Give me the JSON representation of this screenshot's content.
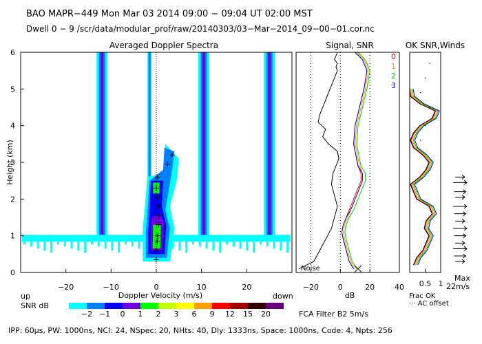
{
  "header": {
    "line1": "BAO  MAPR−449  Mon Mar 03 2014 09:00 − 09:04 UT 02:00 MST",
    "line2": "Dwell  0 −  9   /scr/data/modular_prof/raw/20140303/03−Mar−2014_09−00−01.cor.nc"
  },
  "footer": {
    "params": "IPP:  60μs,  PW: 1000ns,  NCI:  24,  NSpec: 20,  NHts: 40,  Dly: 1333ns,  Space: 1000ns,  Code: 4,  Npts: 256",
    "fca": "FCA Filter B2   5m/s"
  },
  "legend": {
    "up": "up",
    "down": "down",
    "snr_label": "SNR dB",
    "values": [
      "−2",
      "−1",
      "0",
      "1",
      "2",
      "3",
      "6",
      "9",
      "12",
      "15",
      "20"
    ],
    "colors": [
      "#00ffff",
      "#0080ff",
      "#0000ff",
      "#7000e0",
      "#00ff00",
      "#c0ff00",
      "#ffff00",
      "#ffa000",
      "#ff0000",
      "#a00000",
      "#330000",
      "#6a0080"
    ]
  },
  "chart_data": [
    {
      "type": "heatmap",
      "title": "Averaged Doppler Spectra",
      "xlabel": "Doppler Velocity (m/s)",
      "ylabel": "Height (km)",
      "xlim": [
        -30,
        30
      ],
      "ylim": [
        0,
        6
      ],
      "xticks": [
        -20,
        -10,
        0,
        10,
        20
      ],
      "yticks": [
        0,
        1,
        2,
        3,
        4,
        5,
        6
      ],
      "clutter_bands_ms": [
        -12,
        -1.5,
        10.5,
        25
      ],
      "snr_peak_markers": [
        {
          "v": 0,
          "h": 0.35
        },
        {
          "v": 0,
          "h": 0.6
        },
        {
          "v": 0.2,
          "h": 0.85
        },
        {
          "v": 0.3,
          "h": 1.0
        },
        {
          "v": 0.5,
          "h": 1.3
        },
        {
          "v": 0.6,
          "h": 1.55
        },
        {
          "v": 0.5,
          "h": 1.8
        },
        {
          "v": 0.2,
          "h": 2.05
        },
        {
          "v": 0,
          "h": 2.3
        },
        {
          "v": 0.3,
          "h": 2.6
        },
        {
          "v": 2.5,
          "h": 2.95
        },
        {
          "v": 3.5,
          "h": 3.2
        }
      ]
    },
    {
      "type": "line",
      "title": "Signal, SNR",
      "xlabel": "dB",
      "xlim": [
        -30,
        40
      ],
      "ylim": [
        0,
        6
      ],
      "xticks": [
        -20,
        0,
        20,
        40
      ],
      "noise_label": "Noise",
      "series": [
        {
          "name": "0",
          "color": "#ff0000",
          "x": [
            9,
            6,
            4,
            2,
            1,
            2,
            4,
            6,
            8,
            10,
            12,
            14,
            14,
            12,
            11,
            10,
            9,
            10,
            13,
            16,
            18,
            15,
            10,
            3,
            1,
            1,
            1,
            0,
            0
          ],
          "y": [
            0.1,
            0.3,
            0.6,
            0.9,
            1.1,
            1.3,
            1.5,
            1.7,
            1.9,
            2.1,
            2.3,
            2.5,
            2.7,
            2.9,
            3.1,
            3.3,
            3.5,
            4.0,
            4.5,
            5.0,
            5.5,
            5.8,
            6.0,
            6.0,
            6.0,
            6.0,
            6.0,
            6.0,
            6.0
          ]
        },
        {
          "name": "1",
          "color": "#ff9900",
          "x": [
            10,
            7,
            5,
            3,
            2,
            3,
            5,
            7,
            9,
            11,
            13,
            15,
            15,
            13,
            12,
            11,
            10,
            11,
            14,
            17,
            19,
            16,
            11,
            4,
            2,
            2,
            2,
            1,
            1
          ],
          "y": [
            0.1,
            0.3,
            0.6,
            0.9,
            1.1,
            1.3,
            1.5,
            1.7,
            1.9,
            2.1,
            2.3,
            2.5,
            2.7,
            2.9,
            3.1,
            3.3,
            3.5,
            4.0,
            4.5,
            5.0,
            5.5,
            5.8,
            6.0,
            6.0,
            6.0,
            6.0,
            6.0,
            6.0,
            6.0
          ]
        },
        {
          "name": "2",
          "color": "#00cc00",
          "x": [
            11,
            8,
            6,
            4,
            3,
            4,
            6,
            9,
            11,
            13,
            15,
            17,
            17,
            14,
            13,
            12,
            11,
            12,
            15,
            18,
            20,
            17,
            12,
            5,
            3,
            3,
            3,
            2,
            2
          ],
          "y": [
            0.1,
            0.3,
            0.6,
            0.9,
            1.1,
            1.3,
            1.5,
            1.7,
            1.9,
            2.1,
            2.3,
            2.5,
            2.7,
            2.9,
            3.1,
            3.3,
            3.5,
            4.0,
            4.5,
            5.0,
            5.5,
            5.8,
            6.0,
            6.0,
            6.0,
            6.0,
            6.0,
            6.0,
            6.0
          ]
        },
        {
          "name": "3",
          "color": "#0000cc",
          "x": [
            9,
            6,
            4,
            2,
            1,
            2,
            4,
            7,
            9,
            11,
            13,
            15,
            15,
            12,
            11,
            10,
            9,
            10,
            13,
            16,
            18,
            15,
            10,
            3,
            1,
            1,
            1,
            0,
            0
          ],
          "y": [
            0.1,
            0.3,
            0.6,
            0.9,
            1.1,
            1.3,
            1.5,
            1.7,
            1.9,
            2.1,
            2.3,
            2.5,
            2.7,
            2.9,
            3.1,
            3.3,
            3.5,
            4.0,
            4.5,
            5.0,
            5.5,
            5.8,
            6.0,
            6.0,
            6.0,
            6.0,
            6.0,
            6.0,
            6.0
          ]
        },
        {
          "name": "Noise",
          "color": "#000000",
          "x": [
            -28,
            -18,
            -14,
            -10,
            -6,
            -4,
            -2,
            -4,
            -6,
            -5,
            -3,
            -1,
            -2,
            -8,
            -12,
            -10,
            -15,
            -14,
            -12,
            -10,
            -8,
            -6,
            -4,
            -2,
            -3,
            -2,
            -4,
            -3,
            -2
          ],
          "y": [
            0.1,
            0.3,
            0.6,
            0.9,
            1.2,
            1.5,
            1.8,
            2.1,
            2.4,
            2.7,
            2.9,
            3.1,
            3.3,
            3.5,
            3.7,
            3.9,
            4.1,
            4.3,
            4.5,
            4.7,
            4.9,
            5.1,
            5.3,
            5.5,
            5.6,
            5.7,
            5.8,
            5.9,
            6.0
          ]
        }
      ]
    },
    {
      "type": "line",
      "title": "OK SNR,Winds",
      "xlabel": "Frac OK",
      "xlim": [
        0,
        1
      ],
      "ylim": [
        0,
        6
      ],
      "xticks": [
        0.5,
        1
      ],
      "xtick_labels": [
        "0.5",
        "1"
      ],
      "series_labels": [
        "0",
        "1",
        "2",
        "3"
      ],
      "series_colors": [
        "#ff0000",
        "#ff9900",
        "#00cc00",
        "#0000cc"
      ],
      "frac_ok": [
        0.2,
        0.3,
        0.5,
        0.6,
        0.7,
        0.55,
        0.6,
        0.8,
        0.7,
        0.3,
        0.2,
        0.1,
        0.4,
        0.6,
        0.7,
        0.5,
        0.2,
        0.1,
        0.2,
        0.4,
        0.8,
        0.9,
        0.4,
        0.1,
        0.05
      ],
      "heights": [
        0.2,
        0.4,
        0.6,
        0.8,
        1.0,
        1.2,
        1.4,
        1.6,
        1.8,
        2.0,
        2.2,
        2.4,
        2.6,
        2.8,
        3.0,
        3.2,
        3.4,
        3.6,
        3.8,
        4.0,
        4.2,
        4.4,
        4.6,
        4.8,
        5.0
      ],
      "wind_arrow_heights": [
        0.3,
        0.45,
        0.65,
        0.8,
        1.0,
        1.2,
        1.4,
        1.6,
        1.8,
        2.05,
        2.2,
        2.45,
        2.6
      ],
      "max_label": "Max",
      "max_value": "22m/s",
      "ac_offset_label": "··· AC offset"
    }
  ]
}
